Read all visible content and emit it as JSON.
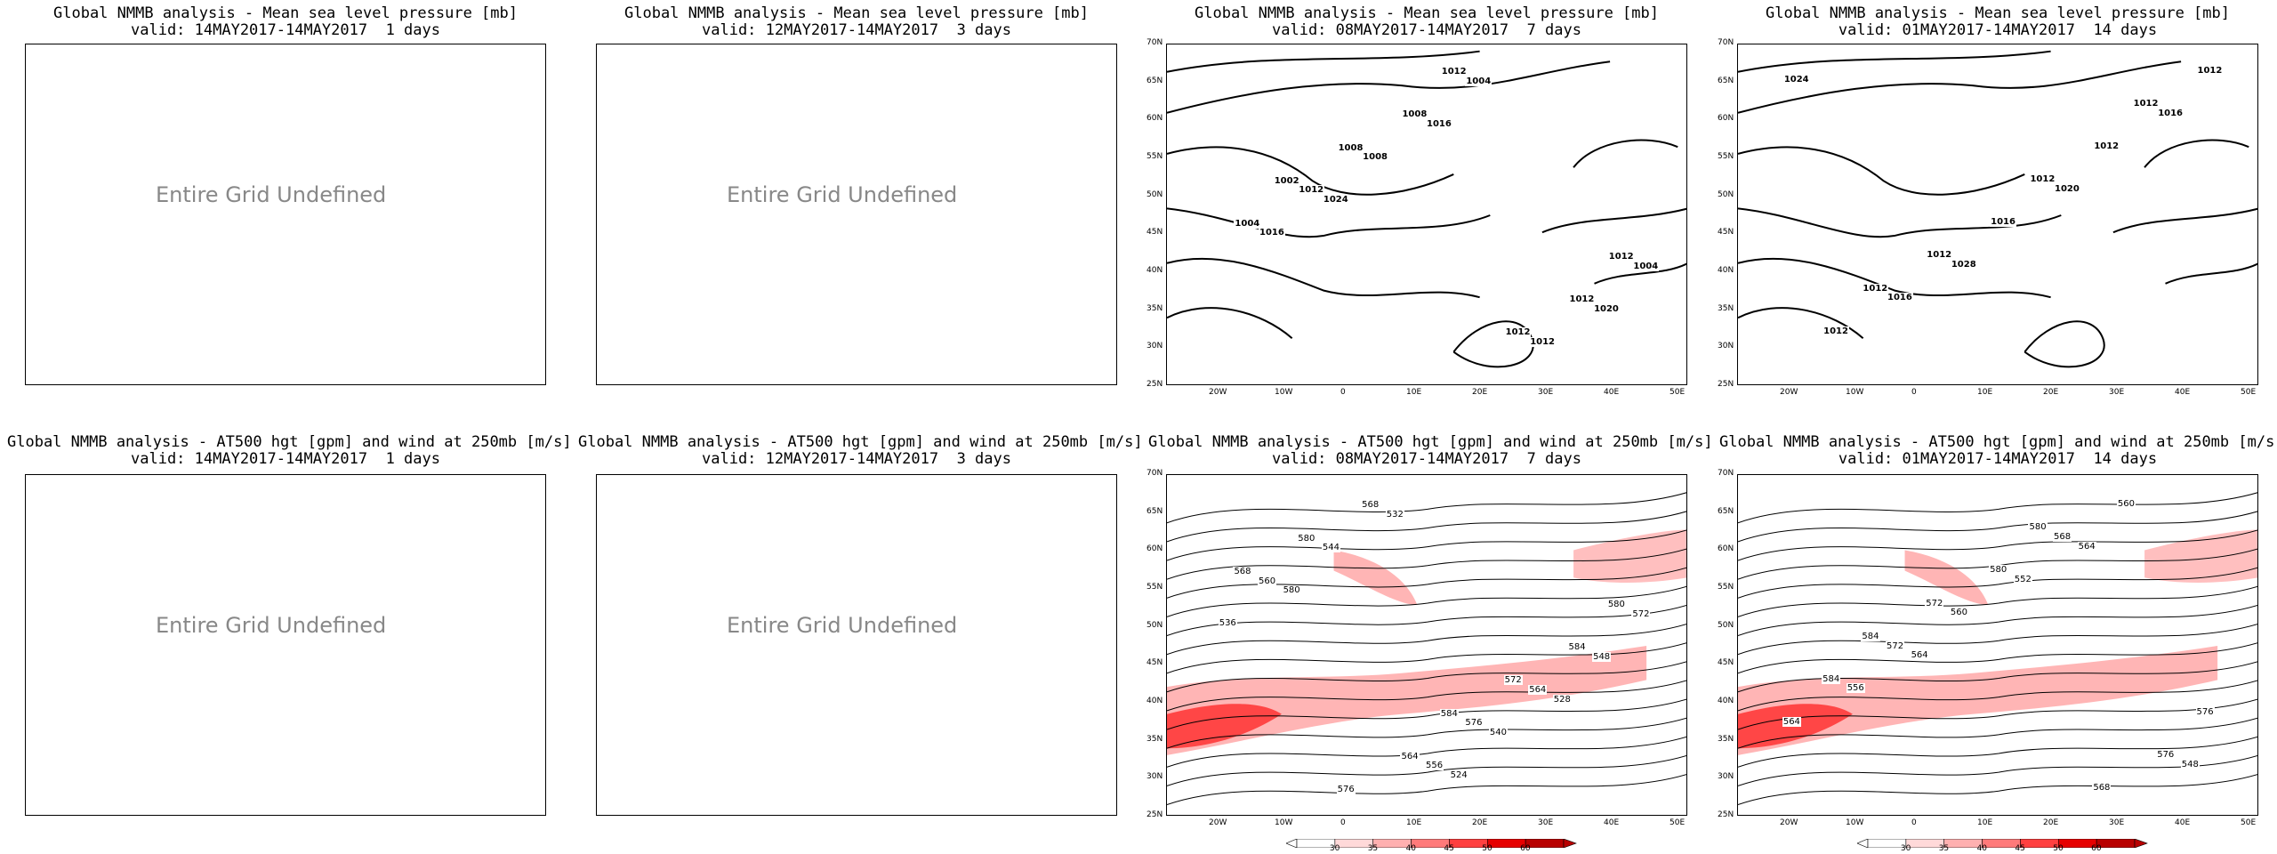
{
  "colors": {
    "coast": "#1fc8c8",
    "contour": "#000000",
    "wind": "#ff2a2a",
    "undefined_text": "#888888"
  },
  "panels": [
    {
      "title1": "Global NMMB analysis - Mean sea level pressure [mb]",
      "title2": "valid: 14MAY2017-14MAY2017  1 days",
      "undefined": "Entire Grid Undefined"
    },
    {
      "title1": "Global NMMB analysis - Mean sea level pressure [mb]",
      "title2": "valid: 12MAY2017-14MAY2017  3 days",
      "undefined": "Entire Grid Undefined"
    },
    {
      "title1": "Global NMMB analysis - Mean sea level pressure [mb]",
      "title2": "valid: 08MAY2017-14MAY2017  7 days",
      "contour_labels": [
        "1024",
        "1020",
        "1016",
        "1016",
        "1012",
        "1008",
        "1004",
        "1004",
        "1012",
        "1012",
        "1008",
        "1004",
        "1012",
        "1008",
        "1012",
        "1012",
        "1002"
      ]
    },
    {
      "title1": "Global NMMB analysis - Mean sea level pressure [mb]",
      "title2": "valid: 01MAY2017-14MAY2017  14 days",
      "contour_labels": [
        "1028",
        "1024",
        "1020",
        "1016",
        "1016",
        "1016",
        "1012",
        "1012",
        "1012",
        "1012",
        "1012",
        "1012",
        "1012"
      ]
    },
    {
      "title1": "Global NMMB analysis - AT500 hgt [gpm] and wind at 250mb [m/s]",
      "title2": "valid: 14MAY2017-14MAY2017  1 days",
      "undefined": "Entire Grid Undefined"
    },
    {
      "title1": "Global NMMB analysis - AT500 hgt [gpm] and wind at 250mb [m/s]",
      "title2": "valid: 12MAY2017-14MAY2017  3 days",
      "undefined": "Entire Grid Undefined"
    },
    {
      "title1": "Global NMMB analysis - AT500 hgt [gpm] and wind at 250mb [m/s]",
      "title2": "valid: 08MAY2017-14MAY2017  7 days",
      "contour_labels": [
        "524",
        "580",
        "528",
        "532",
        "536",
        "540",
        "544",
        "548",
        "556",
        "560",
        "564",
        "568",
        "572",
        "576",
        "580",
        "584",
        "564",
        "568",
        "572",
        "576",
        "580",
        "584"
      ]
    },
    {
      "title1": "Global NMMB analysis - AT500 hgt [gpm] and wind at 250mb [m/s]",
      "title2": "valid: 01MAY2017-14MAY2017  14 days",
      "contour_labels": [
        "564",
        "564",
        "548",
        "552",
        "556",
        "560",
        "560",
        "564",
        "568",
        "572",
        "576",
        "580",
        "584",
        "568",
        "572",
        "576",
        "580",
        "584"
      ]
    }
  ],
  "axes": {
    "lat_ticks": [
      "70N",
      "65N",
      "60N",
      "55N",
      "50N",
      "45N",
      "40N",
      "35N",
      "30N",
      "25N"
    ],
    "lon_ticks": [
      "20W",
      "10W",
      "0",
      "10E",
      "20E",
      "30E",
      "40E",
      "50E"
    ]
  },
  "colorbar": {
    "levels": [
      "30",
      "35",
      "40",
      "45",
      "50",
      "60"
    ],
    "colors": [
      "#ffffff",
      "#ffd9d9",
      "#ffb0b0",
      "#ff7a7a",
      "#ff4040",
      "#e60000",
      "#b80000"
    ]
  }
}
